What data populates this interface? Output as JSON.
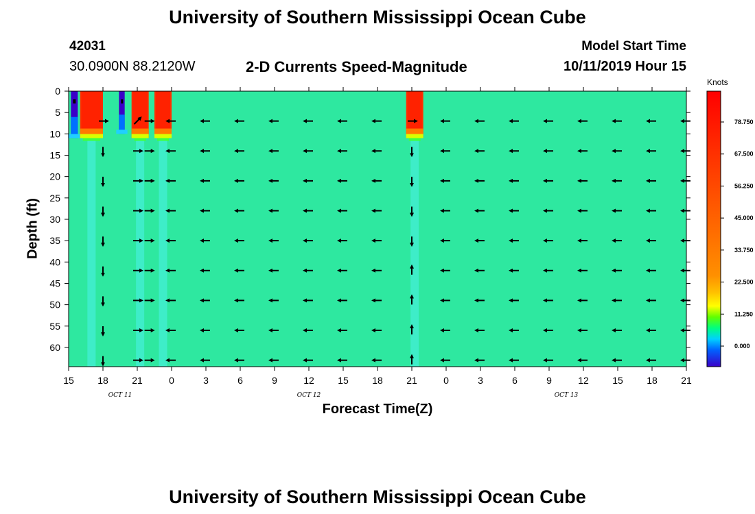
{
  "header": {
    "title": "University of Southern Mississippi Ocean Cube",
    "station_id": "42031",
    "station_coords": "30.0900N 88.2120W",
    "plot_title": "2-D Currents Speed-Magnitude",
    "model_start_label": "Model Start Time",
    "model_start_value": "10/11/2019 Hour 15"
  },
  "footer": {
    "title": "University of Southern Mississippi Ocean Cube"
  },
  "chart_data": {
    "type": "heatmap",
    "xlabel": "Forecast Time(Z)",
    "ylabel": "Depth (ft)",
    "x_tick_labels": [
      "15",
      "18",
      "21",
      "0",
      "3",
      "6",
      "9",
      "12",
      "15",
      "18",
      "21",
      "0",
      "3",
      "6",
      "9",
      "12",
      "15",
      "18",
      "21"
    ],
    "x_date_labels": [
      {
        "label": "OCT 11",
        "tick_index": 1.5
      },
      {
        "label": "OCT 12",
        "tick_index": 7
      },
      {
        "label": "OCT 13",
        "tick_index": 14.5
      }
    ],
    "y_tick_labels": [
      "0",
      "5",
      "10",
      "15",
      "20",
      "25",
      "30",
      "35",
      "40",
      "45",
      "50",
      "55",
      "60"
    ],
    "ylim": [
      0,
      64.5
    ],
    "colorbar": {
      "unit": "Knots",
      "tick_labels": [
        "78.750",
        "67.500",
        "56.250",
        "45.000",
        "33.750",
        "22.500",
        "11.250",
        "0.000"
      ],
      "colors": [
        "#3a00c8",
        "#0050ff",
        "#00c8ff",
        "#00ff80",
        "#40ff00",
        "#c8ff00",
        "#ffff00",
        "#ffd000",
        "#ff9600",
        "#ff7800",
        "#ff5a00",
        "#ff3c00",
        "#ff2000",
        "#ff0000"
      ]
    },
    "background_speed_color": "#2ee8a0",
    "high_speed_patches": [
      {
        "hour_start": 1,
        "hour_end": 3,
        "depth_top": 0,
        "depth_bottom": 11,
        "speed": "high"
      },
      {
        "hour_start": 5.5,
        "hour_end": 7,
        "depth_top": 0,
        "depth_bottom": 11,
        "speed": "high"
      },
      {
        "hour_start": 7.5,
        "hour_end": 9,
        "depth_top": 0,
        "depth_bottom": 11,
        "speed": "high"
      },
      {
        "hour_start": 29.5,
        "hour_end": 31,
        "depth_top": 0,
        "depth_bottom": 11,
        "speed": "high"
      }
    ],
    "low_speed_columns": [
      {
        "hour_start": 0.2,
        "hour_end": 0.8,
        "depth_top": 0,
        "depth_bottom": 11
      },
      {
        "hour_start": 4.4,
        "hour_end": 4.9,
        "depth_top": 0,
        "depth_bottom": 10
      }
    ],
    "vector_rows_depth_ft": [
      7,
      14,
      21,
      28,
      35,
      42,
      49,
      56,
      63
    ],
    "vector_columns_hour": [
      3,
      6,
      7,
      9,
      12,
      15,
      18,
      21,
      24,
      27,
      30,
      33,
      36,
      39,
      42,
      45,
      48,
      51,
      54
    ],
    "vector_column_directions": [
      [
        "right",
        "down",
        "down",
        "down",
        "down",
        "down",
        "down",
        "down",
        "down"
      ],
      [
        "upright",
        "right",
        "right",
        "right",
        "right",
        "right",
        "right",
        "right",
        "right"
      ],
      [
        "right",
        "right",
        "right",
        "right",
        "right",
        "right",
        "right",
        "right",
        "right"
      ],
      [
        "left",
        "left",
        "left",
        "left",
        "left",
        "left",
        "left",
        "left",
        "left"
      ],
      [
        "left",
        "left",
        "left",
        "left",
        "left",
        "left",
        "left",
        "left",
        "left"
      ],
      [
        "left",
        "left",
        "left",
        "left",
        "left",
        "left",
        "left",
        "left",
        "left"
      ],
      [
        "left",
        "left",
        "left",
        "left",
        "left",
        "left",
        "left",
        "left",
        "left"
      ],
      [
        "left",
        "left",
        "left",
        "left",
        "left",
        "left",
        "left",
        "left",
        "left"
      ],
      [
        "left",
        "left",
        "left",
        "left",
        "left",
        "left",
        "left",
        "left",
        "left"
      ],
      [
        "left",
        "left",
        "left",
        "left",
        "left",
        "left",
        "left",
        "left",
        "left"
      ],
      [
        "right",
        "down",
        "down",
        "down",
        "down",
        "up",
        "up",
        "up",
        "up"
      ],
      [
        "left",
        "left",
        "left",
        "left",
        "left",
        "left",
        "left",
        "left",
        "left"
      ],
      [
        "left",
        "left",
        "left",
        "left",
        "left",
        "left",
        "left",
        "left",
        "left"
      ],
      [
        "left",
        "left",
        "left",
        "left",
        "left",
        "left",
        "left",
        "left",
        "left"
      ],
      [
        "left",
        "left",
        "left",
        "left",
        "left",
        "left",
        "left",
        "left",
        "left"
      ],
      [
        "left",
        "left",
        "left",
        "left",
        "left",
        "left",
        "left",
        "left",
        "left"
      ],
      [
        "left",
        "left",
        "left",
        "left",
        "left",
        "left",
        "left",
        "left",
        "left"
      ],
      [
        "left",
        "left",
        "left",
        "left",
        "left",
        "left",
        "left",
        "left",
        "left"
      ],
      [
        "left",
        "left",
        "left",
        "left",
        "left",
        "left",
        "left",
        "left",
        "left"
      ]
    ]
  }
}
